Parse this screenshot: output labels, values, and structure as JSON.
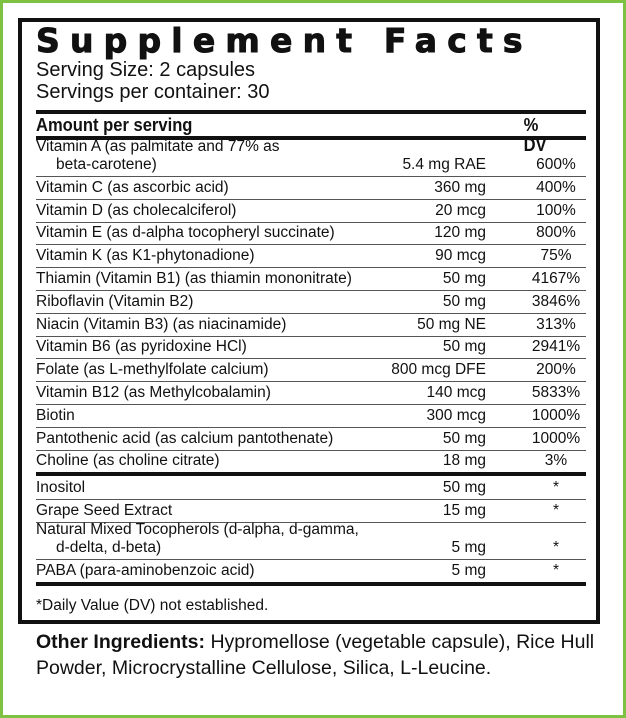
{
  "title": "Supplement Facts",
  "serving_size": "Serving Size: 2 capsules",
  "servings_per_container": "Servings per container: 30",
  "header": {
    "amount": "Amount per serving",
    "dv": "% DV"
  },
  "group1": [
    {
      "name": "Vitamin A (as palmitate and 77% as",
      "name2": "beta-carotene)",
      "amount": "5.4 mg RAE",
      "dv": "600%"
    },
    {
      "name": "Vitamin C (as ascorbic acid)",
      "amount": "360 mg",
      "dv": "400%"
    },
    {
      "name": "Vitamin D (as cholecalciferol)",
      "amount": "20 mcg",
      "dv": "100%"
    },
    {
      "name": "Vitamin E (as d-alpha tocopheryl succinate)",
      "amount": "120 mg",
      "dv": "800%"
    },
    {
      "name": "Vitamin K (as K1-phytonadione)",
      "amount": "90 mcg",
      "dv": "75%"
    },
    {
      "name": "Thiamin (Vitamin B1) (as thiamin mononitrate)",
      "amount": "50 mg",
      "dv": "4167%"
    },
    {
      "name": "Riboflavin (Vitamin B2)",
      "amount": "50 mg",
      "dv": "3846%"
    },
    {
      "name": "Niacin (Vitamin B3) (as niacinamide)",
      "amount": "50 mg NE",
      "dv": "313%"
    },
    {
      "name": "Vitamin B6 (as pyridoxine HCl)",
      "amount": "50 mg",
      "dv": "2941%"
    },
    {
      "name": "Folate (as L-methylfolate calcium)",
      "amount": "800 mcg DFE",
      "dv": "200%"
    },
    {
      "name": "Vitamin B12 (as Methylcobalamin)",
      "amount": "140 mcg",
      "dv": "5833%"
    },
    {
      "name": "Biotin",
      "amount": "300 mcg",
      "dv": "1000%"
    },
    {
      "name": "Pantothenic acid (as calcium pantothenate)",
      "amount": "50 mg",
      "dv": "1000%"
    },
    {
      "name": "Choline (as choline citrate)",
      "amount": "18 mg",
      "dv": "3%"
    }
  ],
  "group2": [
    {
      "name": "Inositol",
      "amount": "50 mg",
      "dv": "*"
    },
    {
      "name": "Grape Seed Extract",
      "amount": "15 mg",
      "dv": "*"
    },
    {
      "name": "Natural Mixed Tocopherols (d-alpha, d-gamma,",
      "name2": "d-delta, d-beta)",
      "amount": "5 mg",
      "dv": "*"
    },
    {
      "name": "PABA (para-aminobenzoic acid)",
      "amount": "5 mg",
      "dv": "*"
    }
  ],
  "footnote": "*Daily Value (DV) not established.",
  "other_ingredients": {
    "label": "Other Ingredients:",
    "text": " Hypromellose (vegetable capsule), Rice Hull Powder, Microcrystalline Cellulose, Silica, L-Leucine."
  },
  "colors": {
    "border_green": "#7dc242",
    "ink": "#111111"
  }
}
